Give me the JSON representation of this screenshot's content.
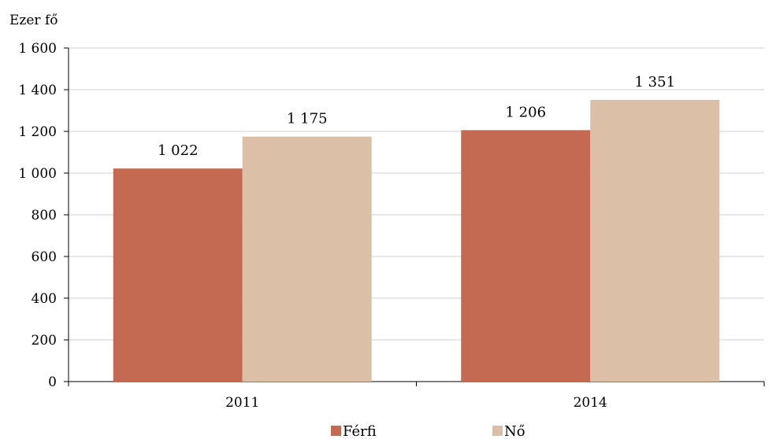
{
  "chart_data": {
    "type": "bar",
    "unit_label": "Ezer fő",
    "categories": [
      "2011",
      "2014"
    ],
    "series": [
      {
        "name": "Férfi",
        "color": "#c56a52",
        "values": [
          1022,
          1206
        ],
        "labels": [
          "1 022",
          "1 206"
        ]
      },
      {
        "name": "Nő",
        "color": "#dbc0a7",
        "values": [
          1175,
          1351
        ],
        "labels": [
          "1 175",
          "1 351"
        ]
      }
    ],
    "yticks": [
      0,
      200,
      400,
      600,
      800,
      1000,
      1200,
      1400,
      1600
    ],
    "ytick_labels": [
      "0",
      "200",
      "400",
      "600",
      "800",
      "1 000",
      "1 200",
      "1 400",
      "1 600"
    ],
    "ylim": [
      0,
      1600
    ],
    "grid": true,
    "legend_position": "bottom"
  }
}
